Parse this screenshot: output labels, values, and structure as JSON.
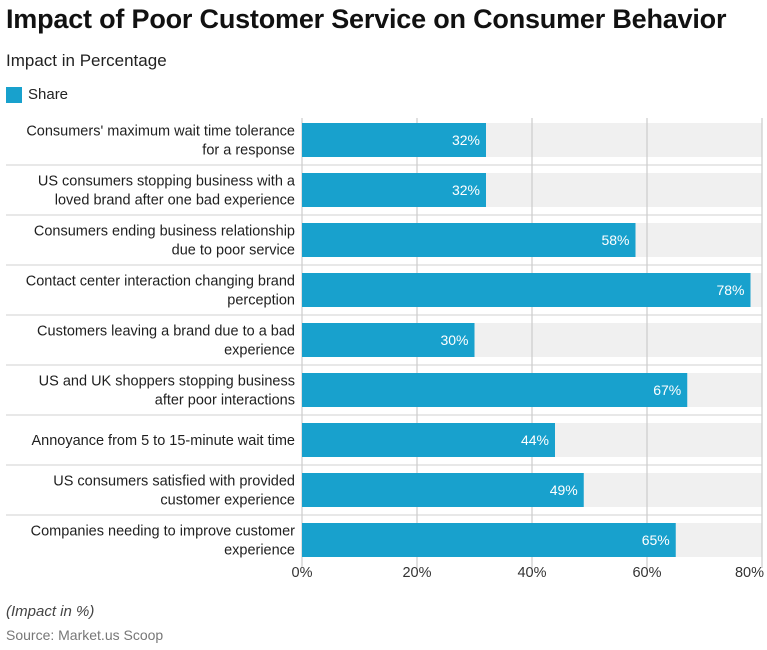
{
  "title": "Impact of Poor Customer Service on Consumer Behavior",
  "subtitle": "Impact in Percentage",
  "legend": {
    "label": "Share",
    "color": "#18a1cd"
  },
  "footnote": "(Impact in %)",
  "source": "Source: Market.us Scoop",
  "chart_data": {
    "type": "bar",
    "orientation": "horizontal",
    "categories": [
      [
        "Consumers' maximum wait time tolerance",
        "for a response"
      ],
      [
        "US consumers stopping business with a",
        "loved brand after one bad experience"
      ],
      [
        "Consumers ending business relationship",
        "due to poor service"
      ],
      [
        "Contact center interaction changing brand",
        "perception"
      ],
      [
        "Customers leaving a brand due to a bad",
        "experience"
      ],
      [
        "US and UK shoppers stopping business",
        "after poor interactions"
      ],
      [
        "Annoyance from 5 to 15-minute wait time"
      ],
      [
        "US consumers satisfied with provided",
        "customer experience"
      ],
      [
        "Companies needing to improve customer",
        "experience"
      ]
    ],
    "series": [
      {
        "name": "Share",
        "values": [
          32,
          32,
          58,
          78,
          30,
          67,
          44,
          49,
          65
        ],
        "labels": [
          "32%",
          "32%",
          "58%",
          "78%",
          "30%",
          "67%",
          "44%",
          "49%",
          "65%"
        ]
      }
    ],
    "xlim": [
      0,
      80
    ],
    "ticks": [
      0,
      20,
      40,
      60,
      80
    ],
    "tick_labels": [
      "0%",
      "20%",
      "40%",
      "60%",
      "80%"
    ],
    "grid": true,
    "colors": {
      "bar": "#18a1cd",
      "track": "#f0f0f0",
      "grid": "#cccccc",
      "separator": "#d0d0d0"
    }
  }
}
